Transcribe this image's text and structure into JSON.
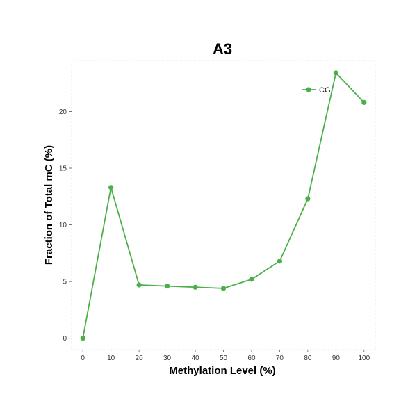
{
  "chart_data": {
    "type": "line",
    "title": "A3",
    "xlabel": "Methylation Level (%)",
    "ylabel": "Fraction of Total mC (%)",
    "xlim": [
      -4,
      104
    ],
    "ylim": [
      -1,
      24.5
    ],
    "x_ticks": [
      0,
      10,
      20,
      30,
      40,
      50,
      60,
      70,
      80,
      90,
      100
    ],
    "y_ticks": [
      0,
      5,
      10,
      15,
      20
    ],
    "grid": false,
    "legend_position": "top-right",
    "series": [
      {
        "name": "CG",
        "color": "#4daf4a",
        "x": [
          0,
          10,
          20,
          30,
          40,
          50,
          60,
          70,
          80,
          90,
          100
        ],
        "y": [
          0.0,
          13.3,
          4.7,
          4.6,
          4.5,
          4.4,
          5.2,
          6.8,
          12.3,
          23.4,
          20.8
        ]
      }
    ]
  }
}
